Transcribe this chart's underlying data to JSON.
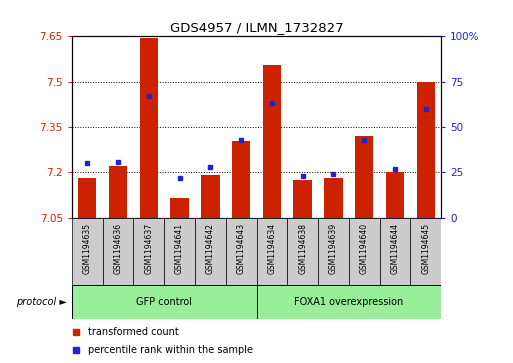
{
  "title": "GDS4957 / ILMN_1732827",
  "samples": [
    "GSM1194635",
    "GSM1194636",
    "GSM1194637",
    "GSM1194641",
    "GSM1194642",
    "GSM1194643",
    "GSM1194634",
    "GSM1194638",
    "GSM1194639",
    "GSM1194640",
    "GSM1194644",
    "GSM1194645"
  ],
  "red_values": [
    7.18,
    7.22,
    7.645,
    7.115,
    7.19,
    7.305,
    7.555,
    7.175,
    7.18,
    7.32,
    7.2,
    7.5
  ],
  "blue_values_pct": [
    30,
    31,
    67,
    22,
    28,
    43,
    63,
    23,
    24,
    43,
    27,
    60
  ],
  "ymin": 7.05,
  "ymax": 7.65,
  "yticks": [
    7.05,
    7.2,
    7.35,
    7.5,
    7.65
  ],
  "right_yticks": [
    0,
    25,
    50,
    75,
    100
  ],
  "group1_label": "GFP control",
  "group2_label": "FOXA1 overexpression",
  "group1_count": 6,
  "group2_count": 6,
  "legend_red": "transformed count",
  "legend_blue": "percentile rank within the sample",
  "protocol_label": "protocol",
  "red_color": "#cc2200",
  "blue_color": "#2222cc",
  "group_bg_color": "#99ee99",
  "bar_bg_color": "#cccccc",
  "bar_width": 0.6
}
